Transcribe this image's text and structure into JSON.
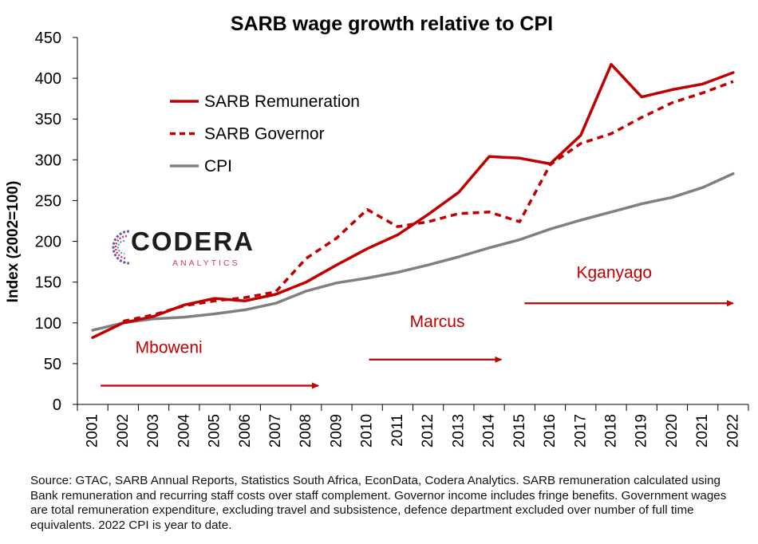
{
  "chart_data": {
    "type": "line",
    "title": "SARB wage growth relative to CPI",
    "xlabel": "",
    "ylabel": "Index (2002=100)",
    "ylim": [
      0,
      450
    ],
    "yticks": [
      0,
      50,
      100,
      150,
      200,
      250,
      300,
      350,
      400,
      450
    ],
    "categories": [
      "2001",
      "2002",
      "2003",
      "2004",
      "2005",
      "2006",
      "2007",
      "2008",
      "2009",
      "2010",
      "2011",
      "2012",
      "2013",
      "2014",
      "2015",
      "2016",
      "2017",
      "2018",
      "2019",
      "2020",
      "2021",
      "2022"
    ],
    "grid": false,
    "legend_position": "top-left",
    "series": [
      {
        "name": "SARB Remuneration",
        "style": "solid",
        "color": "#C00000",
        "values": [
          82,
          100,
          108,
          122,
          130,
          127,
          135,
          150,
          171,
          191,
          208,
          233,
          260,
          304,
          302,
          295,
          330,
          417,
          377,
          386,
          393,
          407
        ]
      },
      {
        "name": "SARB Governor",
        "style": "dashed",
        "color": "#C00000",
        "values": [
          null,
          102,
          110,
          121,
          127,
          131,
          138,
          179,
          204,
          239,
          218,
          224,
          234,
          236,
          224,
          294,
          320,
          332,
          352,
          370,
          382,
          396
        ]
      },
      {
        "name": "CPI",
        "style": "solid",
        "color": "#808080",
        "values": [
          91,
          100,
          105,
          107,
          111,
          116,
          124,
          139,
          149,
          155,
          162,
          171,
          181,
          192,
          202,
          215,
          226,
          236,
          246,
          254,
          266,
          283
        ]
      }
    ],
    "annotations": [
      {
        "label": "Mboweni",
        "arrow_from": 2001,
        "arrow_to": 2008.4,
        "arrow_y": 23,
        "label_x": 2003.5,
        "label_y": 63
      },
      {
        "label": "Marcus",
        "arrow_from": 2009.8,
        "arrow_to": 2014.4,
        "arrow_y": 55,
        "label_x": 2012.3,
        "label_y": 95
      },
      {
        "label": "Kganyago",
        "arrow_from": 2014.9,
        "arrow_to": 2022,
        "arrow_y": 124,
        "label_x": 2018.1,
        "label_y": 155
      }
    ]
  },
  "logo": {
    "name": "CODERA",
    "subtitle": "ANALYTICS"
  },
  "footnote": "Source: GTAC, SARB Annual Reports, Statistics South Africa, EconData, Codera Analytics. SARB remuneration calculated using Bank remuneration and recurring staff costs over staff complement. Governor income includes fringe benefits. Government wages are total remuneration expenditure, excluding travel and subsistence, defence department excluded over number of full time equivalents. 2022 CPI is year to date."
}
